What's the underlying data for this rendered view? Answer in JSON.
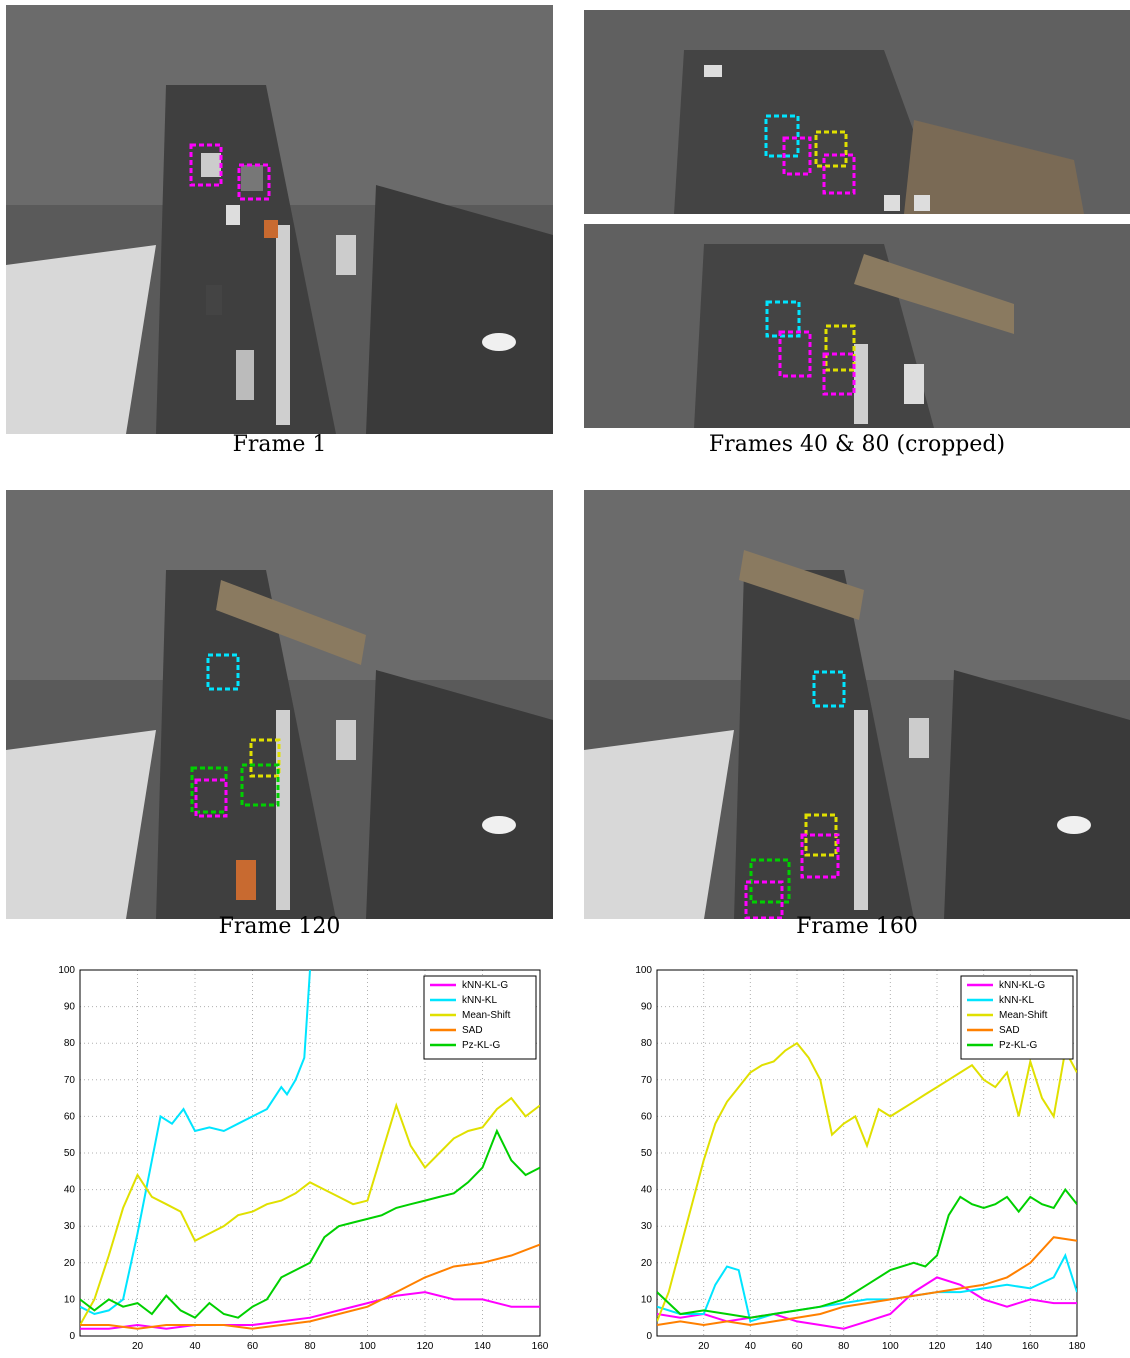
{
  "captions": {
    "frame1": "Frame 1",
    "frames40_80": "Frames 40 & 80 (cropped)",
    "frame120": "Frame 120",
    "frame160": "Frame 160"
  },
  "colors": {
    "kNN-KL-G": "#ff00ff",
    "kNN-KL": "#00e5ff",
    "Mean-Shift": "#e0e000",
    "SAD": "#ff8000",
    "Pz-KL-G": "#00d000"
  },
  "chart_data": [
    {
      "type": "line",
      "title": "",
      "xlabel": "",
      "ylabel": "",
      "xlim": [
        0,
        160
      ],
      "ylim": [
        0,
        100
      ],
      "xticks": [
        20,
        40,
        60,
        80,
        100,
        120,
        140,
        160
      ],
      "yticks": [
        0,
        10,
        20,
        30,
        40,
        50,
        60,
        70,
        80,
        90,
        100
      ],
      "grid": true,
      "legend_position": "top-right",
      "series": [
        {
          "name": "kNN-KL-G",
          "x": [
            0,
            10,
            20,
            30,
            40,
            50,
            60,
            70,
            80,
            90,
            100,
            110,
            120,
            130,
            140,
            150,
            160
          ],
          "y": [
            2,
            2,
            3,
            2,
            3,
            3,
            3,
            4,
            5,
            7,
            9,
            11,
            12,
            10,
            10,
            8,
            8
          ]
        },
        {
          "name": "kNN-KL",
          "x": [
            0,
            5,
            10,
            15,
            20,
            25,
            28,
            32,
            36,
            40,
            45,
            50,
            55,
            60,
            65,
            70,
            72,
            75,
            78,
            80
          ],
          "y": [
            8,
            6,
            7,
            10,
            28,
            48,
            60,
            58,
            62,
            56,
            57,
            56,
            58,
            60,
            62,
            68,
            66,
            70,
            76,
            100
          ]
        },
        {
          "name": "Mean-Shift",
          "x": [
            0,
            5,
            10,
            15,
            20,
            25,
            30,
            35,
            40,
            45,
            50,
            55,
            60,
            65,
            70,
            75,
            80,
            85,
            90,
            95,
            100,
            105,
            110,
            115,
            120,
            125,
            130,
            135,
            140,
            145,
            150,
            155,
            160
          ],
          "y": [
            3,
            10,
            22,
            35,
            44,
            38,
            36,
            34,
            26,
            28,
            30,
            33,
            34,
            36,
            37,
            39,
            42,
            40,
            38,
            36,
            37,
            50,
            63,
            52,
            46,
            50,
            54,
            56,
            57,
            62,
            65,
            60,
            63
          ]
        },
        {
          "name": "SAD",
          "x": [
            0,
            10,
            20,
            30,
            40,
            50,
            60,
            70,
            80,
            90,
            100,
            110,
            120,
            130,
            140,
            150,
            160
          ],
          "y": [
            3,
            3,
            2,
            3,
            3,
            3,
            2,
            3,
            4,
            6,
            8,
            12,
            16,
            19,
            20,
            22,
            25
          ]
        },
        {
          "name": "Pz-KL-G",
          "x": [
            0,
            5,
            10,
            15,
            20,
            25,
            30,
            35,
            40,
            45,
            50,
            55,
            60,
            65,
            70,
            75,
            80,
            85,
            90,
            95,
            100,
            105,
            110,
            115,
            120,
            125,
            130,
            135,
            140,
            145,
            150,
            155,
            160
          ],
          "y": [
            10,
            7,
            10,
            8,
            9,
            6,
            11,
            7,
            5,
            9,
            6,
            5,
            8,
            10,
            16,
            18,
            20,
            27,
            30,
            31,
            32,
            33,
            35,
            36,
            37,
            38,
            39,
            42,
            46,
            56,
            48,
            44,
            46
          ]
        }
      ]
    },
    {
      "type": "line",
      "title": "",
      "xlabel": "",
      "ylabel": "",
      "xlim": [
        0,
        180
      ],
      "ylim": [
        0,
        100
      ],
      "xticks": [
        20,
        40,
        60,
        80,
        100,
        120,
        140,
        160,
        180
      ],
      "yticks": [
        0,
        10,
        20,
        30,
        40,
        50,
        60,
        70,
        80,
        90,
        100
      ],
      "grid": true,
      "legend_position": "top-right",
      "series": [
        {
          "name": "kNN-KL-G",
          "x": [
            0,
            10,
            20,
            30,
            40,
            50,
            60,
            70,
            80,
            90,
            100,
            110,
            120,
            130,
            140,
            150,
            160,
            170,
            180
          ],
          "y": [
            6,
            5,
            6,
            4,
            5,
            6,
            4,
            3,
            2,
            4,
            6,
            12,
            16,
            14,
            10,
            8,
            10,
            9,
            9
          ]
        },
        {
          "name": "kNN-KL",
          "x": [
            0,
            10,
            20,
            25,
            30,
            35,
            40,
            45,
            50,
            60,
            70,
            80,
            90,
            100,
            110,
            120,
            130,
            140,
            150,
            160,
            170,
            175,
            180
          ],
          "y": [
            8,
            6,
            6,
            14,
            19,
            18,
            4,
            5,
            6,
            7,
            8,
            9,
            10,
            10,
            11,
            12,
            12,
            13,
            14,
            13,
            16,
            22,
            12
          ]
        },
        {
          "name": "Mean-Shift",
          "x": [
            0,
            5,
            10,
            15,
            20,
            25,
            30,
            35,
            40,
            45,
            50,
            55,
            60,
            65,
            70,
            75,
            80,
            85,
            90,
            95,
            100,
            105,
            110,
            115,
            120,
            125,
            130,
            135,
            140,
            145,
            150,
            155,
            160,
            165,
            170,
            175,
            180
          ],
          "y": [
            4,
            12,
            24,
            36,
            48,
            58,
            64,
            68,
            72,
            74,
            75,
            78,
            80,
            76,
            70,
            55,
            58,
            60,
            52,
            62,
            60,
            62,
            64,
            66,
            68,
            70,
            72,
            74,
            70,
            68,
            72,
            60,
            75,
            65,
            60,
            78,
            72
          ]
        },
        {
          "name": "SAD",
          "x": [
            0,
            10,
            20,
            30,
            40,
            50,
            60,
            70,
            80,
            90,
            100,
            110,
            120,
            130,
            140,
            150,
            160,
            170,
            180
          ],
          "y": [
            3,
            4,
            3,
            4,
            3,
            4,
            5,
            6,
            8,
            9,
            10,
            11,
            12,
            13,
            14,
            16,
            20,
            27,
            26
          ]
        },
        {
          "name": "Pz-KL-G",
          "x": [
            0,
            10,
            20,
            30,
            40,
            50,
            60,
            70,
            80,
            90,
            100,
            110,
            115,
            120,
            125,
            130,
            135,
            140,
            145,
            150,
            155,
            160,
            165,
            170,
            175,
            180
          ],
          "y": [
            12,
            6,
            7,
            6,
            5,
            6,
            7,
            8,
            10,
            14,
            18,
            20,
            19,
            22,
            33,
            38,
            36,
            35,
            36,
            38,
            34,
            38,
            36,
            35,
            40,
            36
          ]
        }
      ]
    }
  ]
}
